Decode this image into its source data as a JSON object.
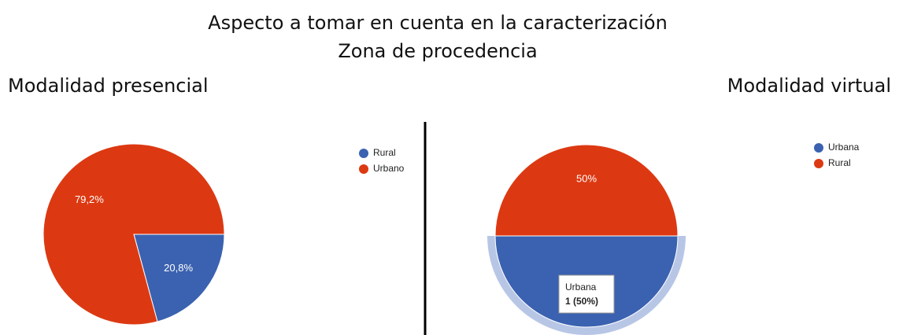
{
  "header": {
    "title": "Aspecto a tomar en cuenta en la caracterización",
    "subtitle": "Zona de procedencia"
  },
  "chart_data": [
    {
      "type": "pie",
      "title": "Modalidad presencial",
      "categories": [
        "Rural",
        "Urbano"
      ],
      "values": [
        20.8,
        79.2
      ],
      "value_labels": [
        "20,8%",
        "79,2%"
      ],
      "colors": [
        "#3b62b0",
        "#dc3912"
      ]
    },
    {
      "type": "pie",
      "title": "Modalidad virtual",
      "categories": [
        "Urbana",
        "Rural"
      ],
      "values": [
        50,
        50
      ],
      "value_labels": [
        null,
        "50%"
      ],
      "colors": [
        "#3b62b0",
        "#dc3912"
      ],
      "tooltip": {
        "label": "Urbana",
        "text": "1 (50%)"
      }
    }
  ]
}
